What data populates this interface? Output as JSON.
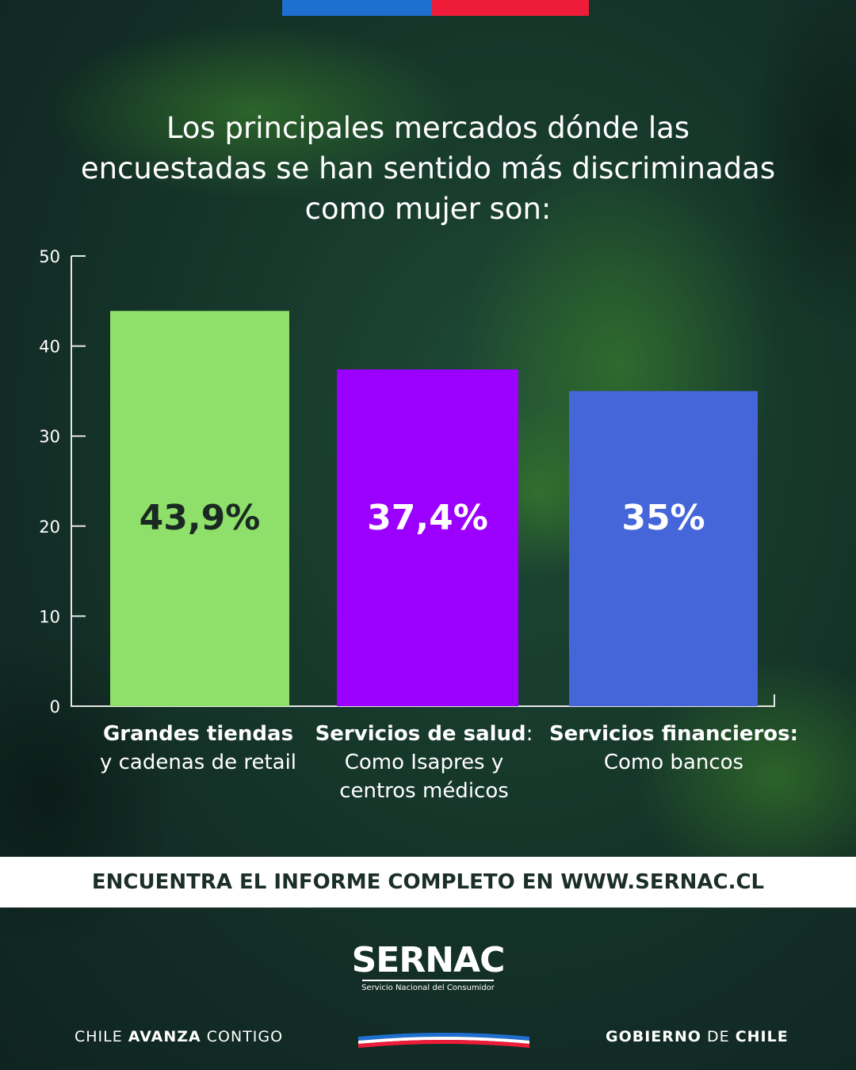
{
  "title": "Los principales mercados dónde las encuestadas se han sentido más discriminadas como mujer son:",
  "chart_data": {
    "type": "bar",
    "categories": [
      "Grandes tiendas y cadenas de retail",
      "Servicios de salud: Como Isapres y centros médicos",
      "Servicios financieros: Como bancos"
    ],
    "values": [
      43.9,
      37.4,
      35
    ],
    "data_labels": [
      "43,9%",
      "37,4%",
      "35%"
    ],
    "ylim": [
      0,
      50
    ],
    "yticks": [
      "0",
      "10",
      "20",
      "30",
      "40",
      "50"
    ],
    "grid": false,
    "bar_colors": [
      "#8fe06a",
      "#9b00ff",
      "#4466d8"
    ],
    "label_colors": [
      "#1a2a22",
      "#ffffff",
      "#ffffff"
    ]
  },
  "categories_display": [
    {
      "bold": "Grandes tiendas",
      "sep": "",
      "lines": [
        "y cadenas de retail"
      ]
    },
    {
      "bold": "Servicios de salud",
      "sep": ":",
      "lines": [
        "Como Isapres y",
        "centros médicos"
      ]
    },
    {
      "bold": "Servicios financieros:",
      "sep": "",
      "lines": [
        "Como bancos"
      ]
    }
  ],
  "banner": {
    "text": "ENCUENTRA EL INFORME COMPLETO EN WWW.SERNAC.CL"
  },
  "logo": {
    "name": "SERNAC",
    "subtitle": "Servicio Nacional del Consumidor"
  },
  "footer": {
    "left_regular": "CHILE ",
    "left_bold": "AVANZA",
    "left_regular2": " CONTIGO",
    "right_bold": "GOBIERNO",
    "right_regular": " DE ",
    "right_bold2": "CHILE"
  },
  "colors": {
    "flag_blue": "#1f6fd1",
    "flag_red": "#ee1c39",
    "background": "#173a2c",
    "banner_text": "#1b2e2a"
  }
}
